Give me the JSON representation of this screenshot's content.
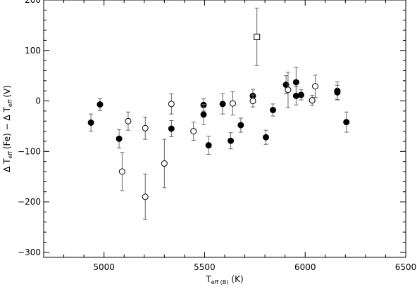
{
  "chart_data": {
    "type": "scatter",
    "title": "",
    "xlabel": {
      "main": "T",
      "sub": "eff (B)",
      "unit": "(K)"
    },
    "ylabel": {
      "t1": "Δ T",
      "sub1": "eff",
      "mid": "(Fe) − Δ T",
      "sub2": "eff",
      "end": "(V)"
    },
    "xlim": [
      4700,
      6500
    ],
    "ylim": [
      -310,
      200
    ],
    "x_ticks": [
      5000,
      5500,
      6000,
      6500
    ],
    "y_ticks": [
      -300,
      -200,
      -100,
      0,
      100,
      200
    ],
    "x_tick_labels": [
      "5000",
      "5500",
      "6000",
      "6500"
    ],
    "y_tick_labels": [
      "−300",
      "−200",
      "−100",
      "0",
      "100",
      "200"
    ],
    "grid": false,
    "series": [
      {
        "marker": "filled-circle",
        "points": [
          {
            "x": 4935,
            "y": -43,
            "err": 17
          },
          {
            "x": 4980,
            "y": -7,
            "err": 12
          },
          {
            "x": 5075,
            "y": -75,
            "err": 18
          },
          {
            "x": 5335,
            "y": -55,
            "err": 16
          },
          {
            "x": 5495,
            "y": -8,
            "err": 12
          },
          {
            "x": 5495,
            "y": -27,
            "err": 20
          },
          {
            "x": 5520,
            "y": -88,
            "err": 18
          },
          {
            "x": 5590,
            "y": -6,
            "err": 20
          },
          {
            "x": 5630,
            "y": -79,
            "err": 16
          },
          {
            "x": 5680,
            "y": -48,
            "err": 14
          },
          {
            "x": 5740,
            "y": 10,
            "err": 13
          },
          {
            "x": 5805,
            "y": -72,
            "err": 14
          },
          {
            "x": 5840,
            "y": -18,
            "err": 12
          },
          {
            "x": 5905,
            "y": 32,
            "err": 18
          },
          {
            "x": 5955,
            "y": 37,
            "err": 30
          },
          {
            "x": 5955,
            "y": 10,
            "err": 18
          },
          {
            "x": 5980,
            "y": 12,
            "err": 10
          },
          {
            "x": 6160,
            "y": 20,
            "err": 18
          },
          {
            "x": 6160,
            "y": 17,
            "err": 14
          },
          {
            "x": 6205,
            "y": -42,
            "err": 20
          }
        ]
      },
      {
        "marker": "open-circle",
        "points": [
          {
            "x": 5090,
            "y": -140,
            "err": 38
          },
          {
            "x": 5120,
            "y": -40,
            "err": 18
          },
          {
            "x": 5205,
            "y": -54,
            "err": 22
          },
          {
            "x": 5205,
            "y": -190,
            "err": 45
          },
          {
            "x": 5300,
            "y": -124,
            "err": 48
          },
          {
            "x": 5335,
            "y": -6,
            "err": 20
          },
          {
            "x": 5445,
            "y": -60,
            "err": 18
          },
          {
            "x": 5640,
            "y": -5,
            "err": 23
          },
          {
            "x": 5740,
            "y": 0,
            "err": 12
          },
          {
            "x": 5915,
            "y": 22,
            "err": 35
          },
          {
            "x": 6035,
            "y": 1,
            "err": 10
          },
          {
            "x": 6050,
            "y": 29,
            "err": 22
          }
        ]
      },
      {
        "marker": "open-square",
        "points": [
          {
            "x": 5760,
            "y": 127,
            "err": 57
          }
        ]
      }
    ]
  }
}
